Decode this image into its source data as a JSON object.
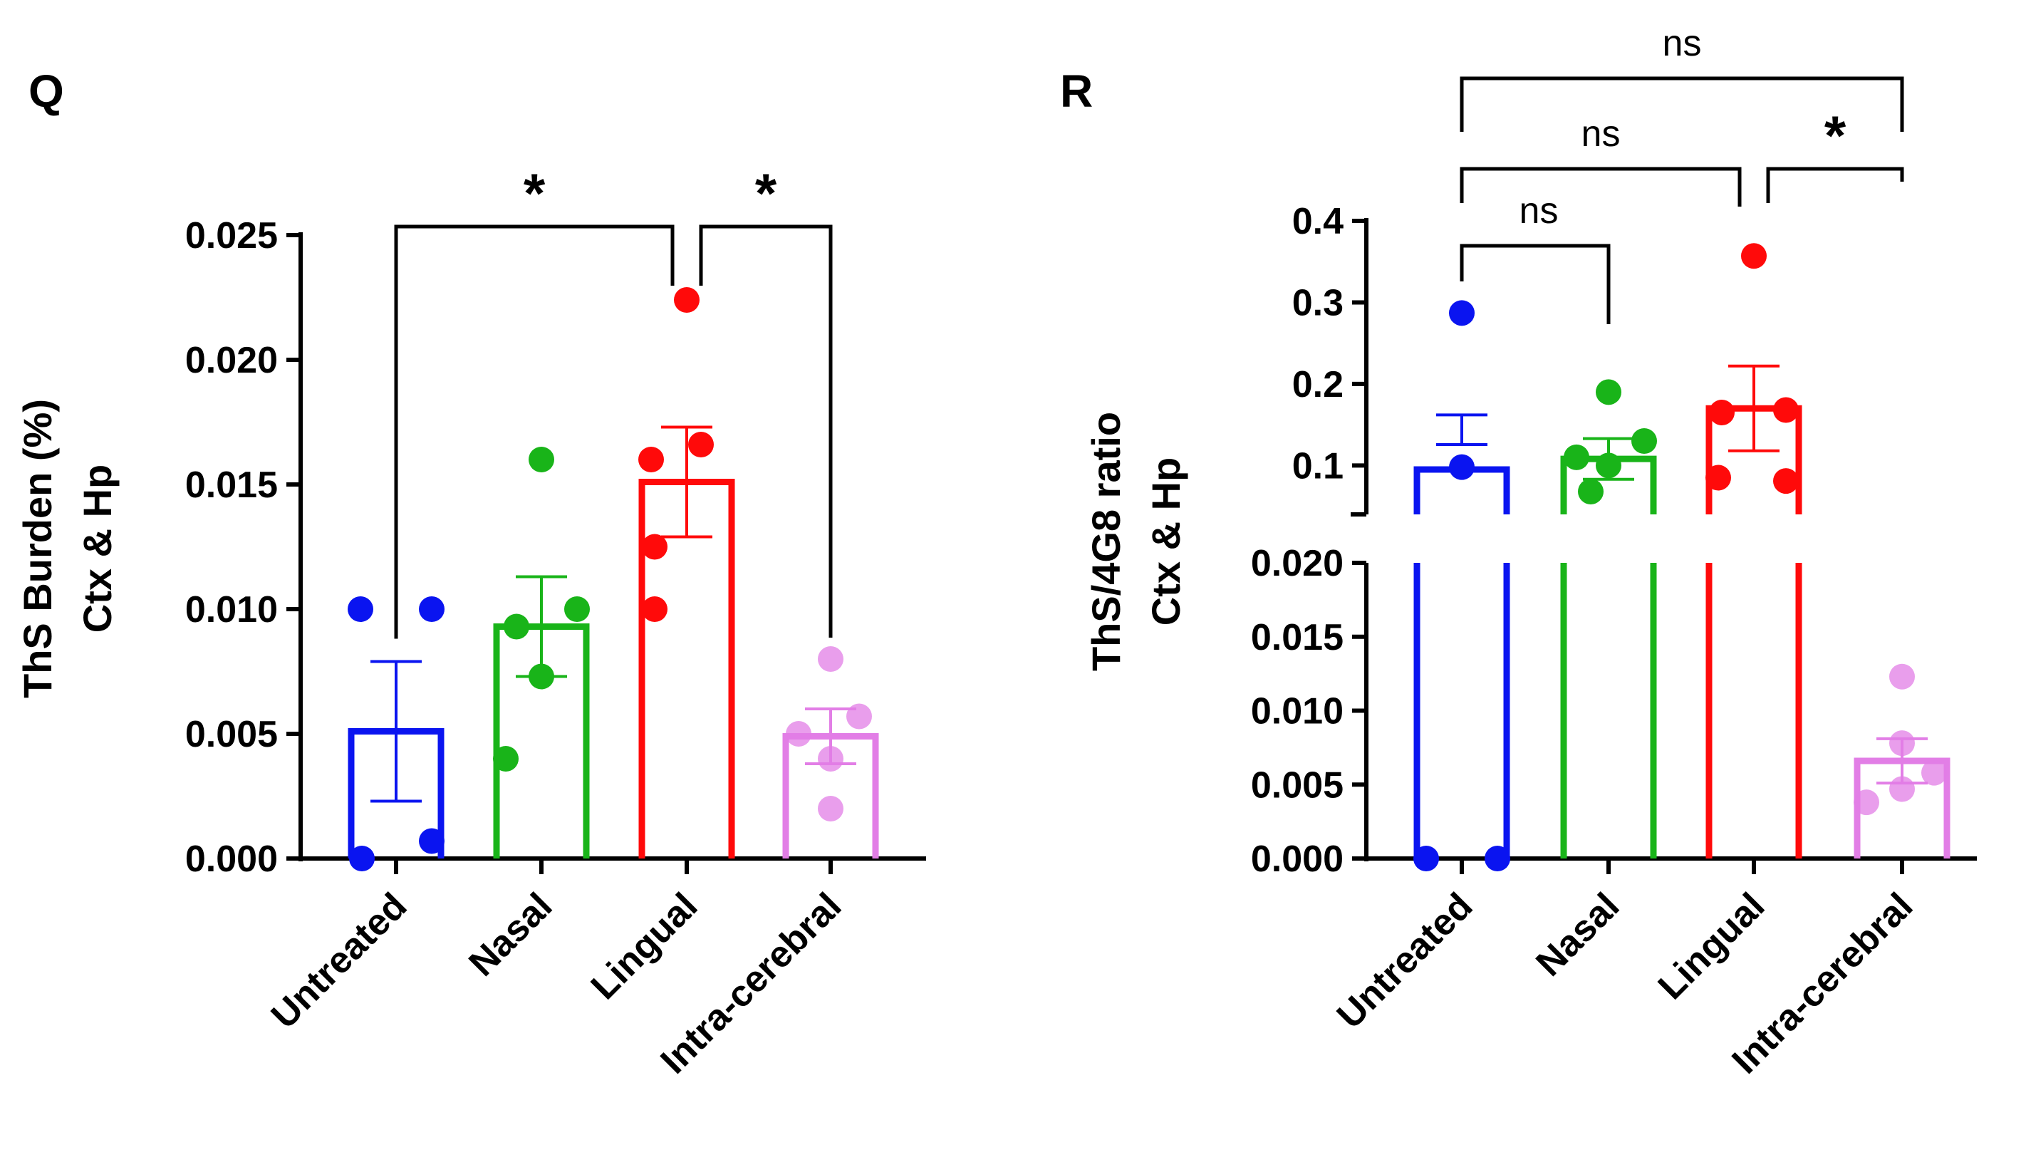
{
  "panels": [
    {
      "label": "Q",
      "ylabel_lines": [
        "ThS Burden (%)",
        "Ctx & Hp"
      ],
      "categories": [
        "Untreated",
        "Nasal",
        "Lingual",
        "Intra-cerebral"
      ],
      "colors": [
        "#0a14f0",
        "#19b419",
        "#ff0a0a",
        "#e27ee6"
      ],
      "yticks": [
        "0.000",
        "0.005",
        "0.010",
        "0.015",
        "0.020",
        "0.025"
      ],
      "significance": [
        {
          "from": 0,
          "to": 2,
          "label": "*"
        },
        {
          "from": 2,
          "to": 3,
          "label": "*"
        }
      ]
    },
    {
      "label": "R",
      "ylabel_lines": [
        "ThS/4G8 ratio",
        "Ctx & Hp"
      ],
      "categories": [
        "Untreated",
        "Nasal",
        "Lingual",
        "Intra-cerebral"
      ],
      "colors": [
        "#0a14f0",
        "#19b419",
        "#ff0a0a",
        "#e27ee6"
      ],
      "yticks_lower": [
        "0.000",
        "0.005",
        "0.010",
        "0.015",
        "0.020"
      ],
      "yticks_upper": [
        "0.1",
        "0.2",
        "0.3",
        "0.4"
      ],
      "significance": [
        {
          "from": 0,
          "to": 1,
          "label": "ns"
        },
        {
          "from": 0,
          "to": 2,
          "label": "ns"
        },
        {
          "from": 2,
          "to": 3,
          "label": "*"
        },
        {
          "from": 0,
          "to": 3,
          "label": "ns"
        }
      ]
    }
  ],
  "chart_data": [
    {
      "type": "bar",
      "categories": [
        "Untreated",
        "Nasal",
        "Lingual",
        "Intra-cerebral"
      ],
      "ylabel": "ThS Burden (%) Ctx & Hp",
      "ylim": [
        0,
        0.025
      ],
      "series": [
        {
          "values": [
            0.0051,
            0.0093,
            0.0151,
            0.0049
          ]
        }
      ],
      "sem": [
        0.0028,
        0.002,
        0.0022,
        0.0011
      ],
      "points": [
        [
          0.01,
          0.01,
          0.0,
          0.0007
        ],
        [
          0.016,
          0.01,
          0.0093,
          0.0073,
          0.004
        ],
        [
          0.0224,
          0.0166,
          0.016,
          0.0125,
          0.01
        ],
        [
          0.008,
          0.0057,
          0.005,
          0.004,
          0.002
        ]
      ]
    },
    {
      "type": "bar",
      "categories": [
        "Untreated",
        "Nasal",
        "Lingual",
        "Intra-cerebral"
      ],
      "ylabel": "ThS/4G8 ratio Ctx & Hp",
      "axis_break": {
        "lower": [
          0,
          0.02
        ],
        "upper": [
          0.04,
          0.4
        ]
      },
      "series": [
        {
          "values": [
            0.095,
            0.108,
            0.17,
            0.0066
          ]
        }
      ],
      "sem": [
        0.067,
        0.025,
        0.052,
        0.0015
      ],
      "points": [
        [
          0.287,
          0.098,
          0.0,
          0.0
        ],
        [
          0.19,
          0.13,
          0.11,
          0.1,
          0.068
        ],
        [
          0.357,
          0.168,
          0.165,
          0.085,
          0.081
        ],
        [
          0.0123,
          0.0078,
          0.0058,
          0.0047,
          0.0038
        ]
      ]
    }
  ]
}
